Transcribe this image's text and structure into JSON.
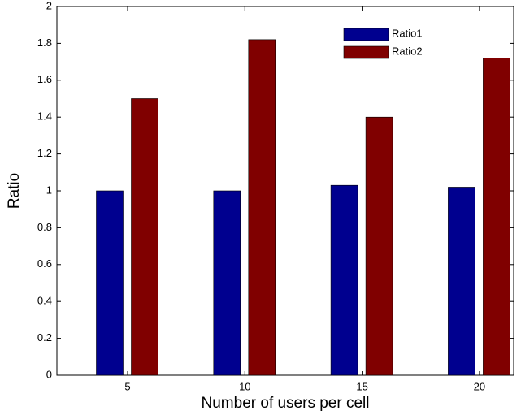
{
  "chart_data": {
    "type": "bar",
    "xlabel": "Number of users per cell",
    "ylabel": "Ratio",
    "categories": [
      "5",
      "10",
      "15",
      "20"
    ],
    "series": [
      {
        "name": "Ratio1",
        "color": "#00008f",
        "values": [
          1,
          1,
          1.03,
          1.02
        ]
      },
      {
        "name": "Ratio2",
        "color": "#800000",
        "values": [
          1.5,
          1.82,
          1.4,
          1.72
        ]
      }
    ],
    "ylim": [
      0,
      2
    ],
    "yticks": [
      0,
      0.2,
      0.4,
      0.6,
      0.8,
      1,
      1.2,
      1.4,
      1.6,
      1.8,
      2
    ],
    "legend": "top-right"
  }
}
